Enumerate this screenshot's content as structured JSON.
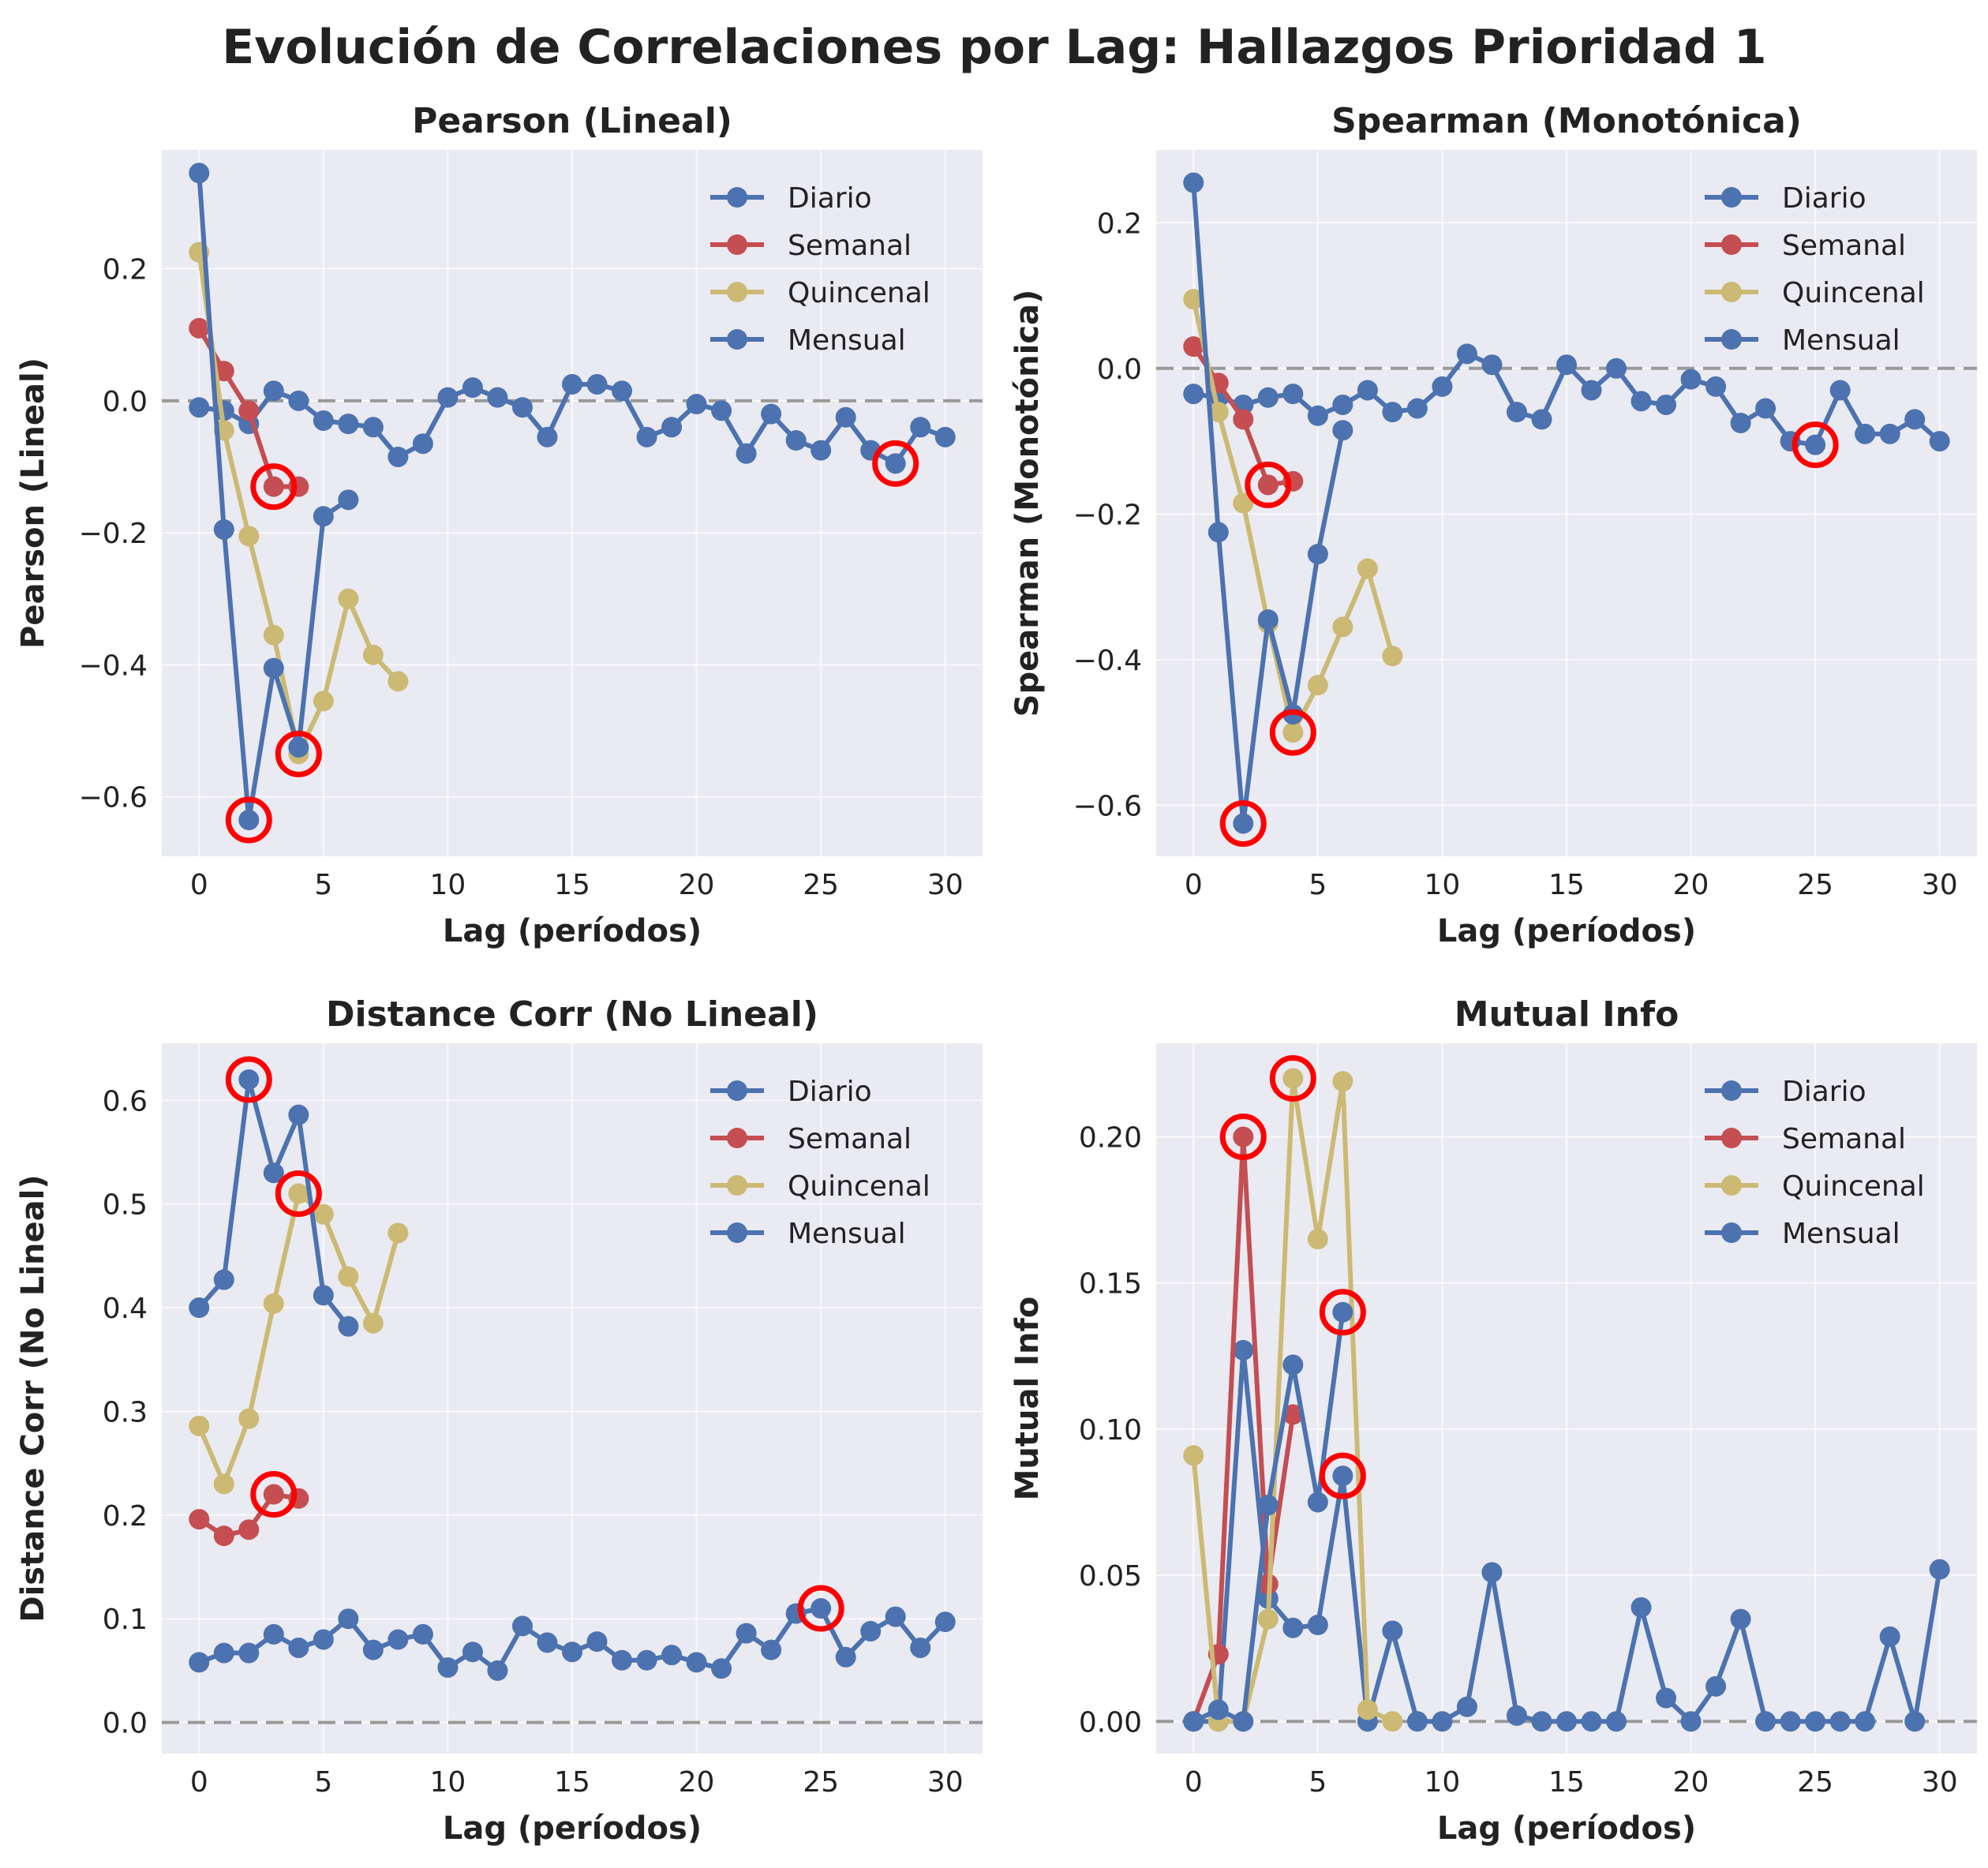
{
  "suptitle": "Evolución de Correlaciones por Lag: Hallazgos Prioridad 1",
  "colors": {
    "Diario": "#4c72b0",
    "Semanal": "#c44e52",
    "Quincenal": "#ccb974",
    "Mensual": "#4c72b0",
    "highlight": "#ff0000",
    "zero_line": "#999999",
    "plot_bg": "#eaeaf2",
    "grid": "#ffffff"
  },
  "legend": [
    "Diario",
    "Semanal",
    "Quincenal",
    "Mensual"
  ],
  "chart_data": [
    {
      "type": "line",
      "title": "Pearson (Lineal)",
      "xlabel": "Lag (períodos)",
      "ylabel": "Pearson (Lineal)",
      "xlim": [
        -1.5,
        31.5
      ],
      "ylim": [
        -0.69,
        0.38
      ],
      "xticks": [
        0,
        5,
        10,
        15,
        20,
        25,
        30
      ],
      "yticks": [
        -0.6,
        -0.4,
        -0.2,
        0.0,
        0.2
      ],
      "ytick_labels": [
        "−0.6",
        "−0.4",
        "−0.2",
        "0.0",
        "0.2"
      ],
      "legend_position": "top-right",
      "grid": true,
      "zero_line": 0,
      "series": [
        {
          "name": "Diario",
          "x": [
            0,
            1,
            2,
            3,
            4,
            5,
            6,
            7,
            8,
            9,
            10,
            11,
            12,
            13,
            14,
            15,
            16,
            17,
            18,
            19,
            20,
            21,
            22,
            23,
            24,
            25,
            26,
            27,
            28,
            29,
            30
          ],
          "y": [
            -0.01,
            -0.015,
            -0.035,
            0.015,
            0.0,
            -0.03,
            -0.035,
            -0.04,
            -0.085,
            -0.065,
            0.005,
            0.02,
            0.005,
            -0.01,
            -0.055,
            0.025,
            0.025,
            0.015,
            -0.055,
            -0.04,
            -0.005,
            -0.015,
            -0.08,
            -0.02,
            -0.06,
            -0.075,
            -0.025,
            -0.075,
            -0.095,
            -0.04,
            -0.055
          ]
        },
        {
          "name": "Semanal",
          "x": [
            0,
            1,
            2,
            3,
            4
          ],
          "y": [
            0.11,
            0.045,
            -0.015,
            -0.13,
            -0.13
          ]
        },
        {
          "name": "Quincenal",
          "x": [
            0,
            1,
            2,
            3,
            4,
            5,
            6,
            7,
            8
          ],
          "y": [
            0.225,
            -0.045,
            -0.205,
            -0.355,
            -0.535,
            -0.455,
            -0.3,
            -0.385,
            -0.425
          ]
        },
        {
          "name": "Mensual",
          "x": [
            0,
            1,
            2,
            3,
            4,
            5,
            6
          ],
          "y": [
            0.345,
            -0.195,
            -0.635,
            -0.405,
            -0.525,
            -0.175,
            -0.15
          ]
        }
      ],
      "highlights": [
        {
          "x": 2,
          "y": -0.635
        },
        {
          "x": 3,
          "y": -0.13
        },
        {
          "x": 4,
          "y": -0.535
        },
        {
          "x": 28,
          "y": -0.095
        }
      ]
    },
    {
      "type": "line",
      "title": "Spearman (Monotónica)",
      "xlabel": "Lag (períodos)",
      "ylabel": "Spearman (Monotónica)",
      "xlim": [
        -1.5,
        31.5
      ],
      "ylim": [
        -0.67,
        0.3
      ],
      "xticks": [
        0,
        5,
        10,
        15,
        20,
        25,
        30
      ],
      "yticks": [
        -0.6,
        -0.4,
        -0.2,
        0.0,
        0.2
      ],
      "ytick_labels": [
        "−0.6",
        "−0.4",
        "−0.2",
        "0.0",
        "0.2"
      ],
      "legend_position": "top-right",
      "grid": true,
      "zero_line": 0,
      "series": [
        {
          "name": "Diario",
          "x": [
            0,
            1,
            2,
            3,
            4,
            5,
            6,
            7,
            8,
            9,
            10,
            11,
            12,
            13,
            14,
            15,
            16,
            17,
            18,
            19,
            20,
            21,
            22,
            23,
            24,
            25,
            26,
            27,
            28,
            29,
            30
          ],
          "y": [
            -0.035,
            -0.04,
            -0.05,
            -0.04,
            -0.035,
            -0.065,
            -0.05,
            -0.03,
            -0.06,
            -0.055,
            -0.025,
            0.02,
            0.005,
            -0.06,
            -0.07,
            0.005,
            -0.03,
            0.0,
            -0.045,
            -0.05,
            -0.015,
            -0.025,
            -0.075,
            -0.055,
            -0.1,
            -0.105,
            -0.03,
            -0.09,
            -0.09,
            -0.07,
            -0.1
          ]
        },
        {
          "name": "Semanal",
          "x": [
            0,
            1,
            2,
            3,
            4
          ],
          "y": [
            0.03,
            -0.02,
            -0.07,
            -0.16,
            -0.155
          ]
        },
        {
          "name": "Quincenal",
          "x": [
            0,
            1,
            2,
            3,
            4,
            5,
            6,
            7,
            8
          ],
          "y": [
            0.095,
            -0.06,
            -0.185,
            -0.35,
            -0.5,
            -0.435,
            -0.355,
            -0.275,
            -0.395
          ]
        },
        {
          "name": "Mensual",
          "x": [
            0,
            1,
            2,
            3,
            4,
            5,
            6
          ],
          "y": [
            0.255,
            -0.225,
            -0.625,
            -0.345,
            -0.475,
            -0.255,
            -0.085
          ]
        }
      ],
      "highlights": [
        {
          "x": 2,
          "y": -0.625
        },
        {
          "x": 3,
          "y": -0.16
        },
        {
          "x": 4,
          "y": -0.5
        },
        {
          "x": 25,
          "y": -0.105
        }
      ]
    },
    {
      "type": "line",
      "title": "Distance Corr (No Lineal)",
      "xlabel": "Lag (períodos)",
      "ylabel": "Distance Corr (No Lineal)",
      "xlim": [
        -1.5,
        31.5
      ],
      "ylim": [
        -0.03,
        0.655
      ],
      "xticks": [
        0,
        5,
        10,
        15,
        20,
        25,
        30
      ],
      "yticks": [
        0.0,
        0.1,
        0.2,
        0.3,
        0.4,
        0.5,
        0.6
      ],
      "ytick_labels": [
        "0.0",
        "0.1",
        "0.2",
        "0.3",
        "0.4",
        "0.5",
        "0.6"
      ],
      "legend_position": "top-right",
      "grid": true,
      "zero_line": 0,
      "series": [
        {
          "name": "Diario",
          "x": [
            0,
            1,
            2,
            3,
            4,
            5,
            6,
            7,
            8,
            9,
            10,
            11,
            12,
            13,
            14,
            15,
            16,
            17,
            18,
            19,
            20,
            21,
            22,
            23,
            24,
            25,
            26,
            27,
            28,
            29,
            30
          ],
          "y": [
            0.058,
            0.067,
            0.067,
            0.085,
            0.072,
            0.08,
            0.1,
            0.07,
            0.08,
            0.085,
            0.053,
            0.068,
            0.05,
            0.093,
            0.077,
            0.068,
            0.078,
            0.06,
            0.06,
            0.065,
            0.058,
            0.052,
            0.086,
            0.07,
            0.105,
            0.11,
            0.063,
            0.088,
            0.102,
            0.072,
            0.097
          ]
        },
        {
          "name": "Semanal",
          "x": [
            0,
            1,
            2,
            3,
            4
          ],
          "y": [
            0.196,
            0.18,
            0.186,
            0.22,
            0.216
          ]
        },
        {
          "name": "Quincenal",
          "x": [
            0,
            1,
            2,
            3,
            4,
            5,
            6,
            7,
            8
          ],
          "y": [
            0.286,
            0.23,
            0.293,
            0.404,
            0.51,
            0.49,
            0.43,
            0.385,
            0.472
          ]
        },
        {
          "name": "Mensual",
          "x": [
            0,
            1,
            2,
            3,
            4,
            5,
            6
          ],
          "y": [
            0.4,
            0.427,
            0.62,
            0.53,
            0.586,
            0.412,
            0.382
          ]
        }
      ],
      "highlights": [
        {
          "x": 2,
          "y": 0.62
        },
        {
          "x": 3,
          "y": 0.22
        },
        {
          "x": 4,
          "y": 0.51
        },
        {
          "x": 25,
          "y": 0.11
        }
      ]
    },
    {
      "type": "line",
      "title": "Mutual Info",
      "xlabel": "Lag (períodos)",
      "ylabel": "Mutual Info",
      "xlim": [
        -1.5,
        31.5
      ],
      "ylim": [
        -0.011,
        0.232
      ],
      "xticks": [
        0,
        5,
        10,
        15,
        20,
        25,
        30
      ],
      "yticks": [
        0.0,
        0.05,
        0.1,
        0.15,
        0.2
      ],
      "ytick_labels": [
        "0.00",
        "0.05",
        "0.10",
        "0.15",
        "0.20"
      ],
      "legend_position": "top-right",
      "grid": true,
      "zero_line": 0,
      "series": [
        {
          "name": "Diario",
          "x": [
            0,
            1,
            2,
            3,
            4,
            5,
            6,
            7,
            8,
            9,
            10,
            11,
            12,
            13,
            14,
            15,
            16,
            17,
            18,
            19,
            20,
            21,
            22,
            23,
            24,
            25,
            26,
            27,
            28,
            29,
            30
          ],
          "y": [
            0.0,
            0.0,
            0.127,
            0.042,
            0.032,
            0.033,
            0.084,
            0.0,
            0.031,
            0.0,
            0.0,
            0.005,
            0.051,
            0.002,
            0.0,
            0.0,
            0.0,
            0.0,
            0.039,
            0.008,
            0.0,
            0.012,
            0.035,
            0.0,
            0.0,
            0.0,
            0.0,
            0.0,
            0.029,
            0.0,
            0.052
          ]
        },
        {
          "name": "Semanal",
          "x": [
            0,
            1,
            2,
            3,
            4
          ],
          "y": [
            0.0,
            0.023,
            0.2,
            0.047,
            0.105
          ]
        },
        {
          "name": "Quincenal",
          "x": [
            0,
            1,
            2,
            3,
            4,
            5,
            6,
            7,
            8
          ],
          "y": [
            0.091,
            0.0,
            0.0,
            0.035,
            0.22,
            0.165,
            0.219,
            0.004,
            0.0
          ]
        },
        {
          "name": "Mensual",
          "x": [
            0,
            1,
            2,
            3,
            4,
            5,
            6
          ],
          "y": [
            0.0,
            0.004,
            0.0,
            0.074,
            0.122,
            0.075,
            0.14
          ]
        }
      ],
      "highlights": [
        {
          "x": 2,
          "y": 0.2
        },
        {
          "x": 4,
          "y": 0.22
        },
        {
          "x": 6,
          "y": 0.14
        },
        {
          "x": 6,
          "y": 0.084
        }
      ]
    }
  ]
}
